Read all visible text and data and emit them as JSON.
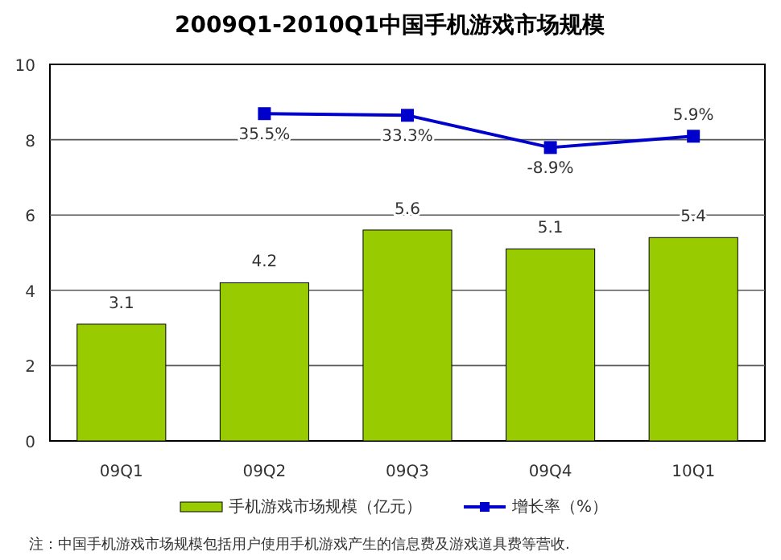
{
  "chart_data": {
    "type": "bar",
    "title": "2009Q1-2010Q1中国手机游戏市场规模",
    "categories": [
      "09Q1",
      "09Q2",
      "09Q3",
      "09Q4",
      "10Q1"
    ],
    "series": [
      {
        "name": "手机游戏市场规模（亿元）",
        "color": "#99cc00",
        "values": [
          3.1,
          4.2,
          5.6,
          5.1,
          5.4
        ],
        "value_labels": [
          "3.1",
          "4.2",
          "5.6",
          "5.1",
          "5.4"
        ]
      },
      {
        "name": "增长率（%）",
        "type": "line",
        "axis": "y2",
        "color": "#0000cc",
        "marker": "square",
        "values": [
          null,
          35.5,
          33.3,
          -8.9,
          5.9
        ],
        "value_labels": [
          null,
          "35.5%",
          "33.3%",
          "-8.9%",
          "5.9%"
        ]
      }
    ],
    "ylim": [
      0,
      10
    ],
    "yticks": [
      0,
      2,
      4,
      6,
      8,
      10
    ],
    "y2lim": [
      -393,
      100
    ],
    "grid": "y",
    "legend": "bottom",
    "tick_labels": "xy",
    "annotations": [
      "注：中国手机游戏市场规模包括用户使用手机游戏产生的信息费及游戏道具费等营收."
    ]
  }
}
